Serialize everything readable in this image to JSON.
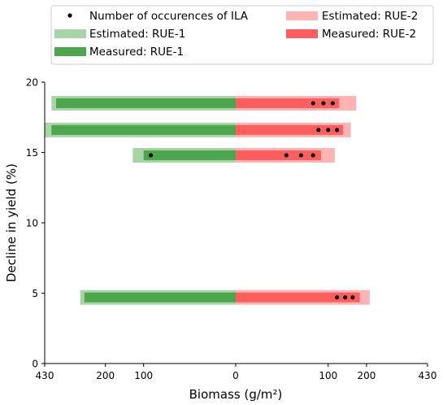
{
  "chart_data": {
    "type": "bar",
    "orientation": "horizontal",
    "xlabel": "Biomass (g/m²)",
    "ylabel": "Decline in yield (%)",
    "x_tick_labels": [
      "430",
      "200",
      "100",
      "0",
      "100",
      "200",
      "430"
    ],
    "x_ticks_biomass": [
      430,
      200,
      100,
      0,
      100,
      200,
      430
    ],
    "x_scale": "square root, mirrored about 0 (RUE-1 left, RUE-2 right)",
    "ylim": [
      0,
      20
    ],
    "y_ticks": [
      0,
      5,
      10,
      15,
      20
    ],
    "grid": false,
    "legend_position": "top",
    "legend": {
      "ila": "Number of occurences of ILA",
      "est1": "Estimated: RUE-1",
      "meas1": "Measured: RUE-1",
      "est2": "Estimated: RUE-2",
      "meas2": "Measured: RUE-2"
    },
    "colors": {
      "est1": "#a8d5a8",
      "meas1": "#4ca64c",
      "est2": "#ffb3b3",
      "meas2": "#ff5e5e",
      "dot": "#000000"
    },
    "rows": [
      {
        "y": 18.5,
        "est1": 400,
        "meas1": 380,
        "est2": 170,
        "meas2": 125,
        "ila": [
          70,
          90,
          110
        ]
      },
      {
        "y": 16.6,
        "est1": 430,
        "meas1": 400,
        "est2": 155,
        "meas2": 135,
        "ila": [
          80,
          100,
          120
        ]
      },
      {
        "y": 14.8,
        "est1": 125,
        "meas1": 100,
        "est2": 115,
        "meas2": 85,
        "ila": [
          30,
          50,
          70
        ]
      },
      {
        "y": 4.7,
        "est1": 285,
        "meas1": 270,
        "est2": 210,
        "meas2": 180,
        "ila": [
          120,
          140,
          160
        ]
      }
    ],
    "ila_left": [
      {
        "y": 14.8,
        "x": 85
      }
    ]
  }
}
